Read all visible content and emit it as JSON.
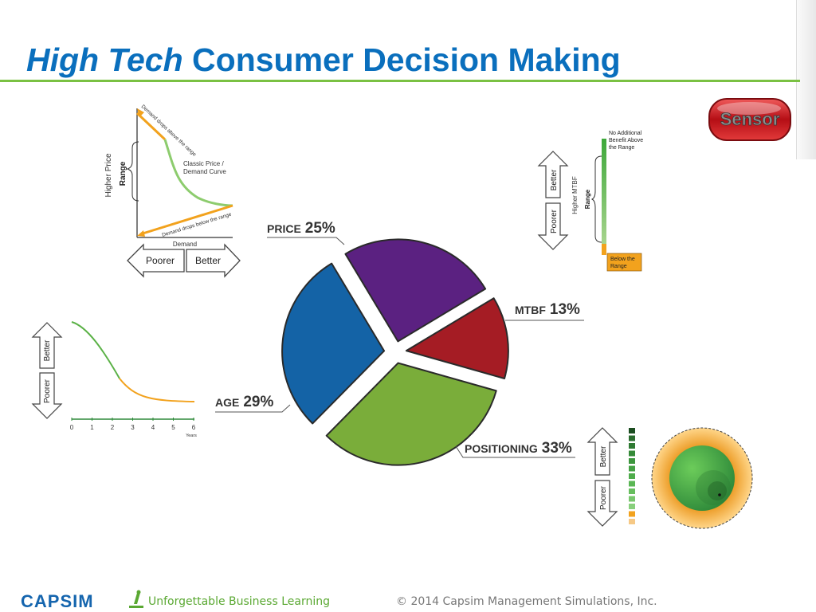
{
  "header": {
    "title_italic": "High Tech",
    "title_rest": " Consumer Decision Making",
    "sensor_logo_text": "Sensor"
  },
  "chart_data": {
    "type": "pie",
    "title": "High Tech Consumer Decision Making",
    "categories": [
      "PRICE",
      "MTBF",
      "POSITIONING",
      "AGE"
    ],
    "values": [
      25,
      13,
      33,
      29
    ],
    "labels": [
      {
        "name": "PRICE",
        "pct": "25%"
      },
      {
        "name": "MTBF",
        "pct": "13%"
      },
      {
        "name": "POSITIONING",
        "pct": "33%"
      },
      {
        "name": "AGE",
        "pct": "29%"
      }
    ],
    "colors": [
      "#5b2181",
      "#a51c24",
      "#7aad3a",
      "#1463a6"
    ]
  },
  "price_panel": {
    "y_label": "Higher Price",
    "range_label": "Range",
    "curve_label_line1": "Classic Price /",
    "curve_label_line2": "Demand Curve",
    "above_label": "Demand drops above the range",
    "below_label": "Demand drops below the range",
    "x_label": "Demand",
    "poorer": "Poorer",
    "better": "Better"
  },
  "mtbf_panel": {
    "better": "Better",
    "poorer": "Poorer",
    "y_label": "Higher MTBF",
    "range_label": "Range",
    "top_note_lines": [
      "No Additional",
      "Benefit Above",
      "the Range"
    ],
    "below_lines": [
      "Below the",
      "Range"
    ]
  },
  "age_panel": {
    "better": "Better",
    "poorer": "Poorer",
    "x_ticks": [
      "0",
      "1",
      "2",
      "3",
      "4",
      "5",
      "6"
    ],
    "x_unit": "Years"
  },
  "positioning_panel": {
    "better": "Better",
    "poorer": "Poorer"
  },
  "footer": {
    "brand": "CAPSIM",
    "tagline": "Unforgettable Business Learning",
    "copyright": "© 2014 Capsim Management Simulations, Inc."
  },
  "colors": {
    "title_blue": "#0a6fbd",
    "rule_green": "#7ac143",
    "orange": "#f2a21d",
    "green": "#5ab146"
  }
}
